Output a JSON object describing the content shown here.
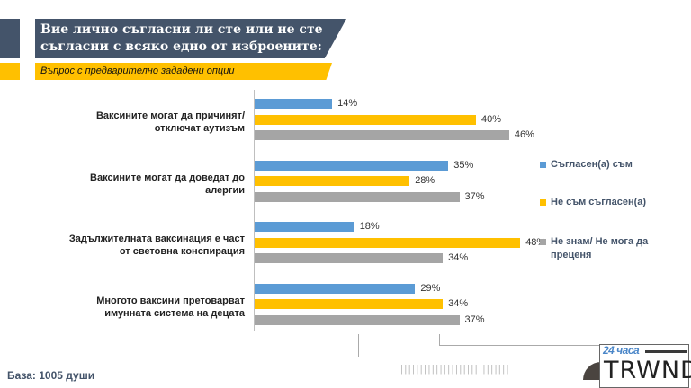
{
  "header": {
    "title_line1": "Вие лично съгласни ли сте или не сте",
    "title_line2": "съгласни с всяко едно от изброените:",
    "subtitle": "Въпрос с предварително зададени опции"
  },
  "footer": {
    "base": "База: 1005 души",
    "logo_brand": "24 часа",
    "logo_name": "TREND"
  },
  "colors": {
    "agree": "#5b9bd5",
    "disagree": "#ffc000",
    "dontknow": "#a5a5a5",
    "header": "#44546a"
  },
  "chart_data": {
    "type": "bar",
    "orientation": "horizontal",
    "xlim": [
      0,
      100
    ],
    "legend_placement": "right",
    "categories": [
      [
        "Ваксините могат да причинят/",
        "отключат аутизъм"
      ],
      [
        "Ваксините могат да доведат до",
        "алергии"
      ],
      [
        "Задължителната ваксинация е част",
        "от световна конспирация"
      ],
      [
        "Многото ваксини претоварват",
        "имунната система на децата"
      ]
    ],
    "series": [
      {
        "name": "Съгласен(а) съм",
        "values": [
          14,
          35,
          18,
          29
        ]
      },
      {
        "name": "Не съм съгласен(а)",
        "values": [
          40,
          28,
          48,
          34
        ]
      },
      {
        "name": "Не знам/ Не мога да преценя",
        "values": [
          46,
          37,
          34,
          37
        ]
      }
    ]
  }
}
